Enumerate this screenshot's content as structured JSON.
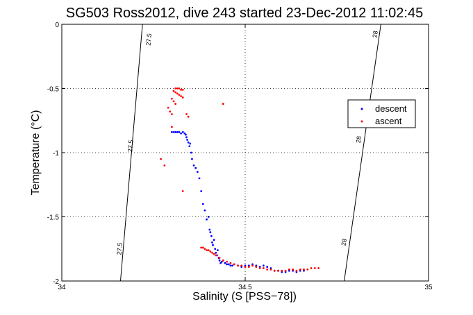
{
  "chart_data": {
    "type": "scatter",
    "title": "SG503 Ross2012, dive 243 started 23-Dec-2012 11:02:45",
    "xlabel": "Salinity (S [PSS−78])",
    "ylabel": "Temperature (°C)",
    "xlim": [
      34,
      35
    ],
    "ylim": [
      -2,
      0
    ],
    "xticks": [
      34,
      34.5,
      35
    ],
    "xtick_labels": [
      "34",
      "34.5",
      "35"
    ],
    "yticks": [
      0,
      -0.5,
      -1,
      -1.5,
      -2
    ],
    "ytick_labels": [
      "0",
      "-0.5",
      "-1",
      "-1.5",
      "-2"
    ],
    "grid": true,
    "grid_style": "dotted",
    "legend_position": "right",
    "isopycnals": [
      {
        "label": "27.5",
        "points": [
          [
            34.22,
            0
          ],
          [
            34.16,
            -2
          ]
        ],
        "label_positions": [
          [
            34.243,
            -0.12
          ],
          [
            34.193,
            -0.95
          ],
          [
            34.163,
            -1.75
          ]
        ]
      },
      {
        "label": "28",
        "points": [
          [
            34.87,
            0
          ],
          [
            34.77,
            -2
          ]
        ],
        "label_positions": [
          [
            34.86,
            -0.08
          ],
          [
            34.815,
            -0.9
          ],
          [
            34.775,
            -1.7
          ]
        ]
      }
    ],
    "series": [
      {
        "name": "descent",
        "color": "#0000ff",
        "x": [
          34.3,
          34.305,
          34.31,
          34.315,
          34.32,
          34.325,
          34.33,
          34.335,
          34.338,
          34.34,
          34.342,
          34.345,
          34.348,
          34.35,
          34.353,
          34.355,
          34.36,
          34.365,
          34.37,
          34.375,
          34.38,
          34.385,
          34.39,
          34.395,
          34.4,
          34.403,
          34.405,
          34.408,
          34.41,
          34.412,
          34.415,
          34.418,
          34.42,
          34.423,
          34.425,
          34.428,
          34.43,
          34.433,
          34.436,
          34.44,
          34.445,
          34.45,
          34.455,
          34.46,
          34.465,
          34.47,
          34.48,
          34.49,
          34.5,
          34.51,
          34.52,
          34.53,
          34.54,
          34.55,
          34.56,
          34.57,
          34.58,
          34.59,
          34.6,
          34.61,
          34.62,
          34.63,
          34.64,
          34.65,
          34.66
        ],
        "y": [
          -0.84,
          -0.84,
          -0.84,
          -0.84,
          -0.84,
          -0.85,
          -0.84,
          -0.85,
          -0.86,
          -0.88,
          -0.9,
          -0.92,
          -0.95,
          -0.93,
          -1.0,
          -1.05,
          -1.1,
          -1.12,
          -1.15,
          -1.2,
          -1.3,
          -1.4,
          -1.45,
          -1.52,
          -1.5,
          -1.6,
          -1.62,
          -1.65,
          -1.7,
          -1.72,
          -1.68,
          -1.75,
          -1.78,
          -1.8,
          -1.76,
          -1.82,
          -1.84,
          -1.86,
          -1.85,
          -1.84,
          -1.86,
          -1.87,
          -1.87,
          -1.88,
          -1.88,
          -1.87,
          -1.88,
          -1.89,
          -1.88,
          -1.88,
          -1.87,
          -1.88,
          -1.89,
          -1.88,
          -1.89,
          -1.9,
          -1.92,
          -1.92,
          -1.93,
          -1.93,
          -1.92,
          -1.92,
          -1.93,
          -1.92,
          -1.92
        ]
      },
      {
        "name": "ascent",
        "color": "#ff0000",
        "x": [
          34.31,
          34.315,
          34.32,
          34.325,
          34.33,
          34.305,
          34.31,
          34.315,
          34.32,
          34.325,
          34.33,
          34.3,
          34.305,
          34.31,
          34.29,
          34.295,
          34.3,
          34.34,
          34.345,
          34.44,
          34.28,
          34.33,
          34.27,
          34.3,
          34.38,
          34.385,
          34.39,
          34.395,
          34.4,
          34.405,
          34.41,
          34.415,
          34.42,
          34.43,
          34.44,
          34.45,
          34.46,
          34.47,
          34.48,
          34.49,
          34.5,
          34.51,
          34.52,
          34.53,
          34.54,
          34.55,
          34.56,
          34.57,
          34.58,
          34.59,
          34.6,
          34.61,
          34.62,
          34.63,
          34.64,
          34.65,
          34.66,
          34.67,
          34.68,
          34.69,
          34.7
        ],
        "y": [
          -0.5,
          -0.5,
          -0.5,
          -0.51,
          -0.51,
          -0.52,
          -0.53,
          -0.54,
          -0.55,
          -0.56,
          -0.57,
          -0.58,
          -0.6,
          -0.62,
          -0.65,
          -0.68,
          -0.7,
          -0.7,
          -0.72,
          -0.62,
          -1.1,
          -1.3,
          -1.05,
          -0.8,
          -1.74,
          -1.74,
          -1.75,
          -1.76,
          -1.76,
          -1.77,
          -1.78,
          -1.79,
          -1.8,
          -1.82,
          -1.84,
          -1.85,
          -1.86,
          -1.87,
          -1.88,
          -1.88,
          -1.89,
          -1.89,
          -1.88,
          -1.89,
          -1.9,
          -1.9,
          -1.91,
          -1.91,
          -1.92,
          -1.92,
          -1.92,
          -1.92,
          -1.91,
          -1.91,
          -1.92,
          -1.91,
          -1.91,
          -1.91,
          -1.9,
          -1.9,
          -1.9
        ]
      }
    ]
  }
}
